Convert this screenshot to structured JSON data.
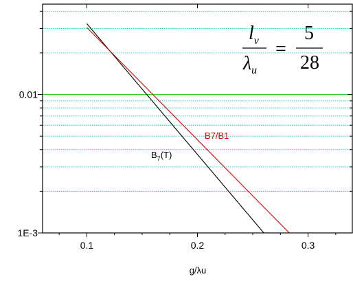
{
  "chart_data": {
    "type": "line",
    "x": [
      0.1,
      0.26,
      0.283
    ],
    "series": [
      {
        "name": "B7(T)",
        "color": "#000000",
        "points": [
          [
            0.1,
            0.0325
          ],
          [
            0.26,
            0.001
          ]
        ]
      },
      {
        "name": "B7/B1",
        "color": "#e00000",
        "points": [
          [
            0.1,
            0.0305
          ],
          [
            0.283,
            0.001
          ]
        ]
      }
    ],
    "xlabel": "g/λu",
    "ylabel": "",
    "xlim": [
      0.06,
      0.34
    ],
    "ylim": [
      0.001,
      0.045
    ],
    "yscale": "log",
    "xticks": [
      0.1,
      0.2,
      0.3
    ],
    "xtick_labels": [
      "0.1",
      "0.2",
      "0.3"
    ],
    "yticks": [
      0.001,
      0.01
    ],
    "ytick_labels": [
      "1E-3",
      "0.01"
    ],
    "grid": "horizontal dotted cyan lines at minor log ticks; solid green line at 0.01",
    "grid_color": "#00cccc",
    "major_grid_color": "#33cc33",
    "annotations": {
      "black_label": {
        "base": "B",
        "sub": "7",
        "rest": "(T)"
      },
      "red_label": "B7/B1",
      "equation": {
        "lhs_num": "l",
        "lhs_num_sub": "v",
        "lhs_den": "λ",
        "lhs_den_sub": "u",
        "equals": "=",
        "rhs_num": "5",
        "rhs_den": "28"
      }
    }
  }
}
